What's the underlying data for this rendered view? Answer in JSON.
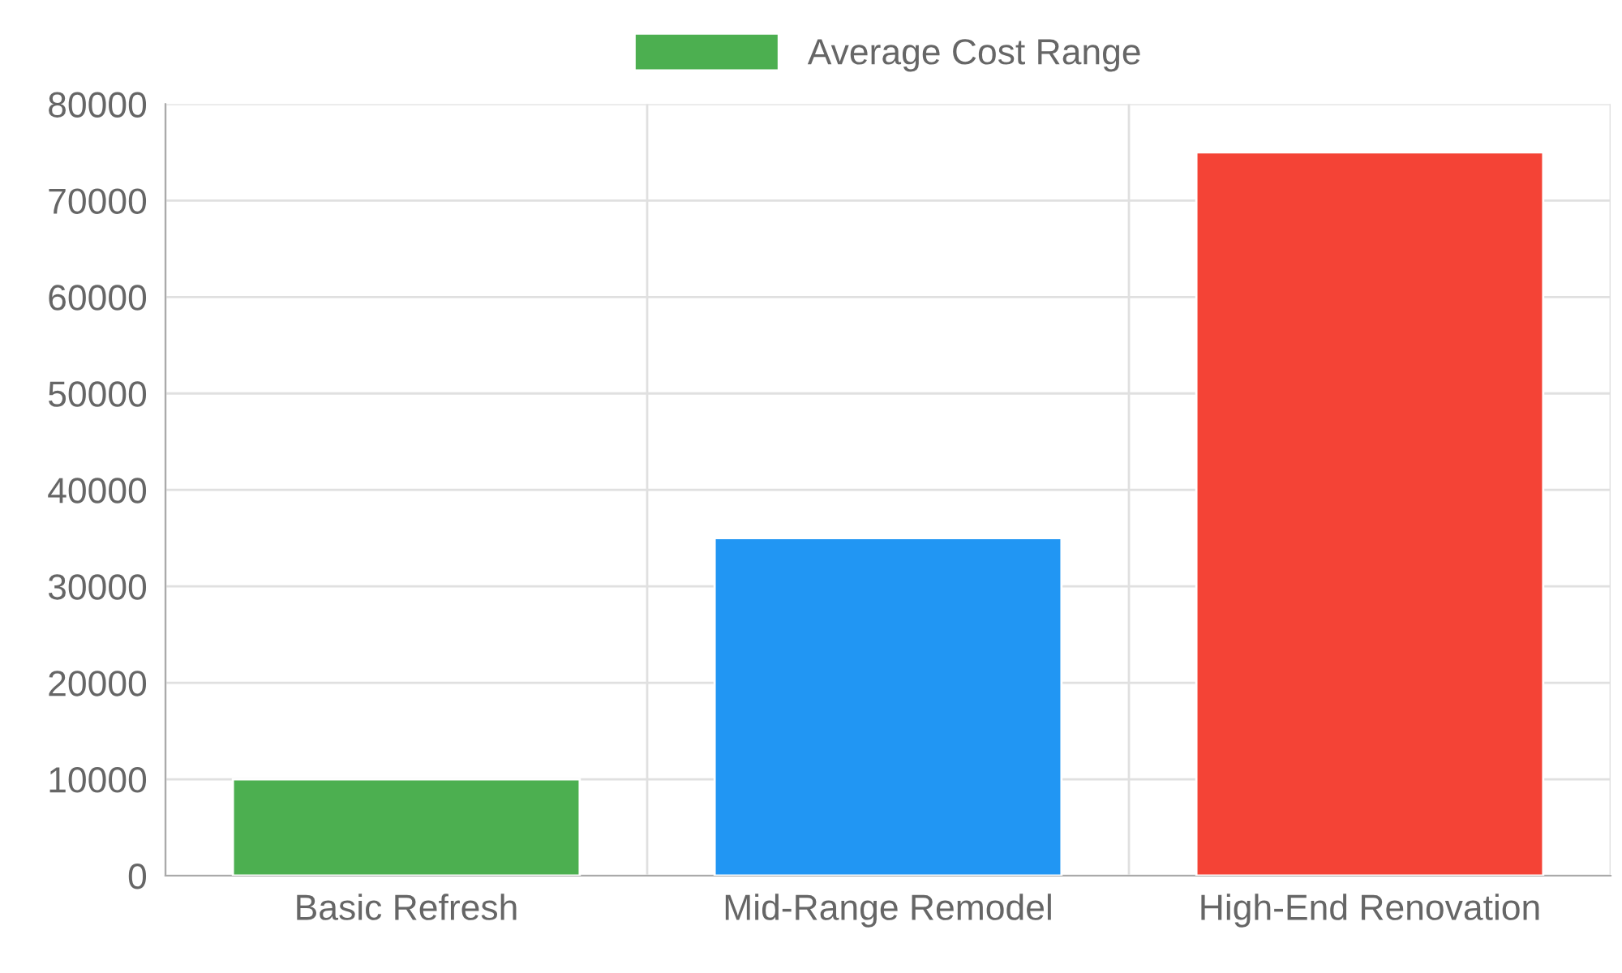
{
  "chart_data": {
    "type": "bar",
    "categories": [
      "Basic Refresh",
      "Mid-Range Remodel",
      "High-End Renovation"
    ],
    "series": [
      {
        "name": "Average Cost Range",
        "colors": [
          "#4caf50",
          "#2196f3",
          "#f44336"
        ],
        "values": [
          10000,
          35000,
          75000
        ]
      }
    ],
    "ylim": [
      0,
      80000
    ],
    "yticks": [
      0,
      10000,
      20000,
      30000,
      40000,
      50000,
      60000,
      70000,
      80000
    ],
    "grid": true,
    "legend": "top"
  }
}
